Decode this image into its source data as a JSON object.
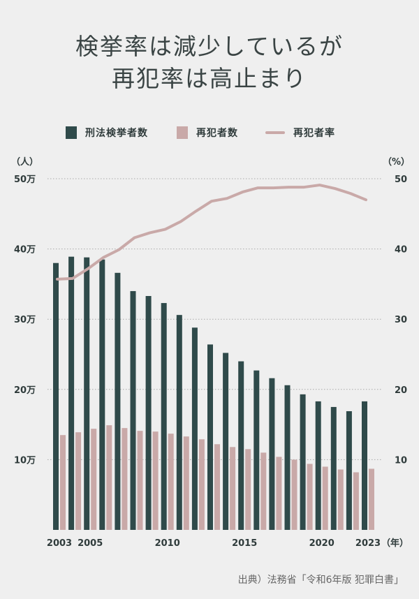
{
  "title": [
    "検挙率は減少しているが",
    "再犯率は高止まり"
  ],
  "legend": {
    "arrests": "刑法検挙者数",
    "repeat": "再犯者数",
    "rate": "再犯者率"
  },
  "colors": {
    "arrests": "#2f4a4a",
    "repeat": "#c9a9a8",
    "rate": "#c9a9a8",
    "grid": "#a9a9a9"
  },
  "source": "出典）法務省「令和6年版 犯罪白書」",
  "chart_data": {
    "type": "bar",
    "title": "検挙率は減少しているが再犯率は高止まり",
    "x": [
      2003,
      2004,
      2005,
      2006,
      2007,
      2008,
      2009,
      2010,
      2011,
      2012,
      2013,
      2014,
      2015,
      2016,
      2017,
      2018,
      2019,
      2020,
      2021,
      2022,
      2023
    ],
    "x_tick_labels": [
      "2003",
      "2005",
      "2010",
      "2015",
      "2020",
      "2023"
    ],
    "x_tick_years": [
      2003,
      2005,
      2010,
      2015,
      2020,
      2023
    ],
    "xlabel": "（年）",
    "ylabel_left": "（人）",
    "ylabel_right": "（%）",
    "ylim_left": [
      0,
      500000
    ],
    "ylim_right": [
      0,
      50
    ],
    "left_ticks": [
      "10万",
      "20万",
      "30万",
      "40万",
      "50万"
    ],
    "left_tick_values": [
      100000,
      200000,
      300000,
      400000,
      500000
    ],
    "right_ticks": [
      "10",
      "20",
      "30",
      "40",
      "50"
    ],
    "right_tick_values": [
      10,
      20,
      30,
      40,
      50
    ],
    "grid": true,
    "legend_position": "top",
    "series": [
      {
        "name": "刑法検挙者数",
        "type": "bar",
        "axis": "left",
        "values": [
          380000,
          389000,
          388000,
          385000,
          366000,
          340000,
          333000,
          323000,
          306000,
          288000,
          264000,
          252000,
          240000,
          227000,
          216000,
          206000,
          193000,
          183000,
          175000,
          169000,
          183000
        ]
      },
      {
        "name": "再犯者数",
        "type": "bar",
        "axis": "left",
        "values": [
          135000,
          139000,
          144000,
          149000,
          145000,
          141000,
          140000,
          137000,
          133000,
          129000,
          122000,
          118000,
          115000,
          110000,
          104000,
          100000,
          94000,
          90000,
          86000,
          82000,
          87000
        ]
      },
      {
        "name": "再犯者率",
        "type": "line",
        "axis": "right",
        "values": [
          35.7,
          35.8,
          37.2,
          38.8,
          39.9,
          41.6,
          42.3,
          42.8,
          43.9,
          45.4,
          46.8,
          47.2,
          48.1,
          48.7,
          48.7,
          48.8,
          48.8,
          49.1,
          48.6,
          47.9,
          47.0
        ]
      }
    ]
  }
}
